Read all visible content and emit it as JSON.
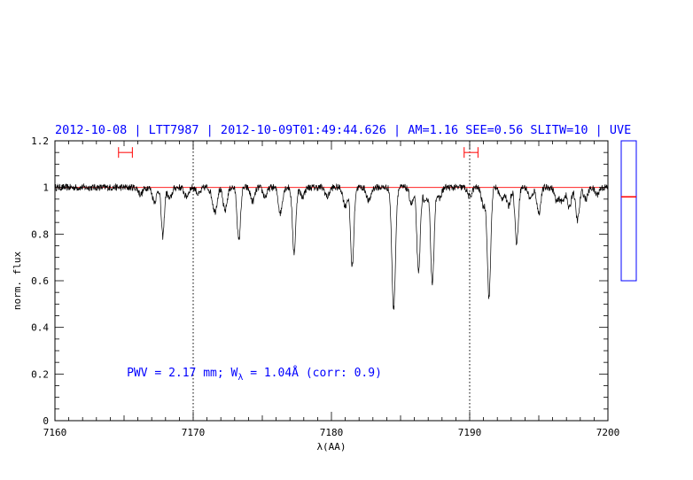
{
  "chart_data": {
    "type": "line",
    "title": "2012-10-08 | LTT7987 | 2012-10-09T01:49:44.626 | AM=1.16 SEE=0.56 SLITW=10 | UVE",
    "xlabel": "λ(AA)",
    "ylabel": "norm. flux",
    "xlim": [
      7160,
      7200
    ],
    "ylim": [
      0,
      1.2
    ],
    "x_ticks": [
      {
        "value": 7160,
        "label": "7160"
      },
      {
        "value": 7170,
        "label": "7170"
      },
      {
        "value": 7180,
        "label": "7180"
      },
      {
        "value": 7190,
        "label": "7190"
      },
      {
        "value": 7200,
        "label": "7200"
      }
    ],
    "y_ticks": [
      {
        "value": 0,
        "label": "0"
      },
      {
        "value": 0.2,
        "label": "0.2"
      },
      {
        "value": 0.4,
        "label": "0.4"
      },
      {
        "value": 0.6,
        "label": "0.6"
      },
      {
        "value": 0.8,
        "label": "0.8"
      },
      {
        "value": 1,
        "label": "1"
      },
      {
        "value": 1.2,
        "label": "1.2"
      }
    ],
    "grid": false,
    "continuum_level": 1.0,
    "vertical_markers": [
      7170,
      7190
    ],
    "continuum_windows": [
      {
        "x_start": 7164.6,
        "x_end": 7165.6,
        "y": 1.15
      },
      {
        "x_start": 7189.6,
        "x_end": 7190.6,
        "y": 1.15
      }
    ],
    "annotation": {
      "pre": "PWV = 2.17 mm; W",
      "sub": "λ",
      "post": " = 1.04Å (corr: 0.9)",
      "x": 7165.2,
      "y": 0.19
    },
    "absorption_lines": [
      {
        "center": 7166.2,
        "depth": 0.03,
        "width": 0.15
      },
      {
        "center": 7167.2,
        "depth": 0.06,
        "width": 0.15
      },
      {
        "center": 7167.8,
        "depth": 0.21,
        "width": 0.11
      },
      {
        "center": 7168.3,
        "depth": 0.05,
        "width": 0.15
      },
      {
        "center": 7169.5,
        "depth": 0.04,
        "width": 0.15
      },
      {
        "center": 7170.4,
        "depth": 0.03,
        "width": 0.15
      },
      {
        "center": 7171.4,
        "depth": 0.03,
        "width": 0.15
      },
      {
        "center": 7171.6,
        "depth": 0.09,
        "width": 0.14
      },
      {
        "center": 7172.3,
        "depth": 0.1,
        "width": 0.15
      },
      {
        "center": 7173.3,
        "depth": 0.23,
        "width": 0.12
      },
      {
        "center": 7174.3,
        "depth": 0.06,
        "width": 0.15
      },
      {
        "center": 7175.2,
        "depth": 0.04,
        "width": 0.15
      },
      {
        "center": 7176.3,
        "depth": 0.11,
        "width": 0.14
      },
      {
        "center": 7177.3,
        "depth": 0.28,
        "width": 0.12
      },
      {
        "center": 7177.9,
        "depth": 0.04,
        "width": 0.15
      },
      {
        "center": 7179.7,
        "depth": 0.04,
        "width": 0.15
      },
      {
        "center": 7181.0,
        "depth": 0.08,
        "width": 0.15
      },
      {
        "center": 7181.5,
        "depth": 0.34,
        "width": 0.12
      },
      {
        "center": 7182.7,
        "depth": 0.06,
        "width": 0.15
      },
      {
        "center": 7184.5,
        "depth": 0.52,
        "width": 0.13
      },
      {
        "center": 7185.8,
        "depth": 0.07,
        "width": 0.15
      },
      {
        "center": 7186.3,
        "depth": 0.37,
        "width": 0.12
      },
      {
        "center": 7186.8,
        "depth": 0.07,
        "width": 0.15
      },
      {
        "center": 7187.3,
        "depth": 0.42,
        "width": 0.12
      },
      {
        "center": 7187.8,
        "depth": 0.05,
        "width": 0.15
      },
      {
        "center": 7190.0,
        "depth": 0.04,
        "width": 0.15
      },
      {
        "center": 7191.0,
        "depth": 0.08,
        "width": 0.15
      },
      {
        "center": 7191.4,
        "depth": 0.47,
        "width": 0.12
      },
      {
        "center": 7192.3,
        "depth": 0.05,
        "width": 0.15
      },
      {
        "center": 7192.8,
        "depth": 0.08,
        "width": 0.15
      },
      {
        "center": 7193.4,
        "depth": 0.24,
        "width": 0.12
      },
      {
        "center": 7194.4,
        "depth": 0.05,
        "width": 0.15
      },
      {
        "center": 7195.0,
        "depth": 0.11,
        "width": 0.14
      },
      {
        "center": 7196.3,
        "depth": 0.06,
        "width": 0.15
      },
      {
        "center": 7196.7,
        "depth": 0.06,
        "width": 0.15
      },
      {
        "center": 7197.2,
        "depth": 0.09,
        "width": 0.14
      },
      {
        "center": 7197.8,
        "depth": 0.14,
        "width": 0.14
      },
      {
        "center": 7198.4,
        "depth": 0.05,
        "width": 0.15
      },
      {
        "center": 7199.2,
        "depth": 0.03,
        "width": 0.15
      }
    ],
    "noise_amplitude": 0.015,
    "side_panel": {
      "ylim": [
        0,
        1.2
      ],
      "box_y_range": [
        0.6,
        1.2
      ],
      "marker_y": 0.96
    },
    "colors": {
      "spectrum": "#000000",
      "continuum": "#ff0000",
      "marker": "#ff0000",
      "annotation": "#0000ff",
      "title": "#0000ff",
      "side_panel": "#0000ff",
      "axis": "#000000"
    }
  }
}
